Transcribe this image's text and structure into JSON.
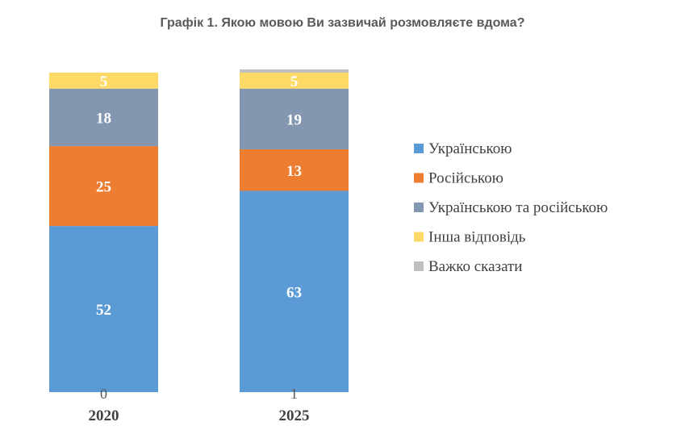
{
  "chart_data": {
    "type": "bar",
    "stacked": true,
    "title": "Графік 1. Якою мовою Ви зазвичай розмовляєте вдома?",
    "categories": [
      "2020",
      "2025"
    ],
    "series": [
      {
        "name": "Українською",
        "color": "#5B9BD5",
        "values": [
          52,
          63
        ]
      },
      {
        "name": "Російською",
        "color": "#ED7D31",
        "values": [
          25,
          13
        ]
      },
      {
        "name": "Українською та російською",
        "color": "#8497B0",
        "values": [
          18,
          19
        ]
      },
      {
        "name": "Інша відповідь",
        "color": "#FFD966",
        "values": [
          5,
          5
        ]
      },
      {
        "name": "Важко сказати",
        "color": "#BFBFBF",
        "values": [
          0,
          1
        ]
      }
    ],
    "ylim": [
      0,
      100
    ],
    "legend_position": "right",
    "grid": false
  }
}
